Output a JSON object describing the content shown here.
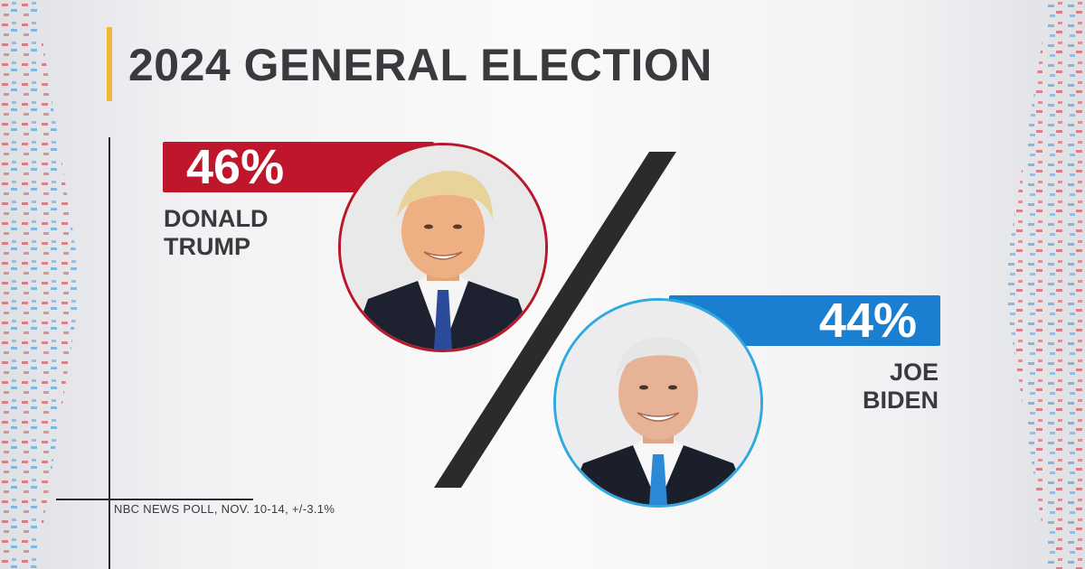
{
  "title": "2024 GENERAL ELECTION",
  "source_note": "NBC NEWS POLL, NOV. 10-14, +/-3.1%",
  "candidates": [
    {
      "name_line1": "DONALD",
      "name_line2": "TRUMP",
      "percent": "46%",
      "value": 46,
      "color": "#c0162c"
    },
    {
      "name_line1": "JOE",
      "name_line2": "BIDEN",
      "percent": "44%",
      "value": 44,
      "color": "#1a7fd0"
    }
  ],
  "colors": {
    "title_text": "#3a3a3e",
    "title_accent": "#f2b632",
    "republican": "#c0162c",
    "democrat": "#1a7fd0",
    "slash": "#2b2b2d"
  }
}
